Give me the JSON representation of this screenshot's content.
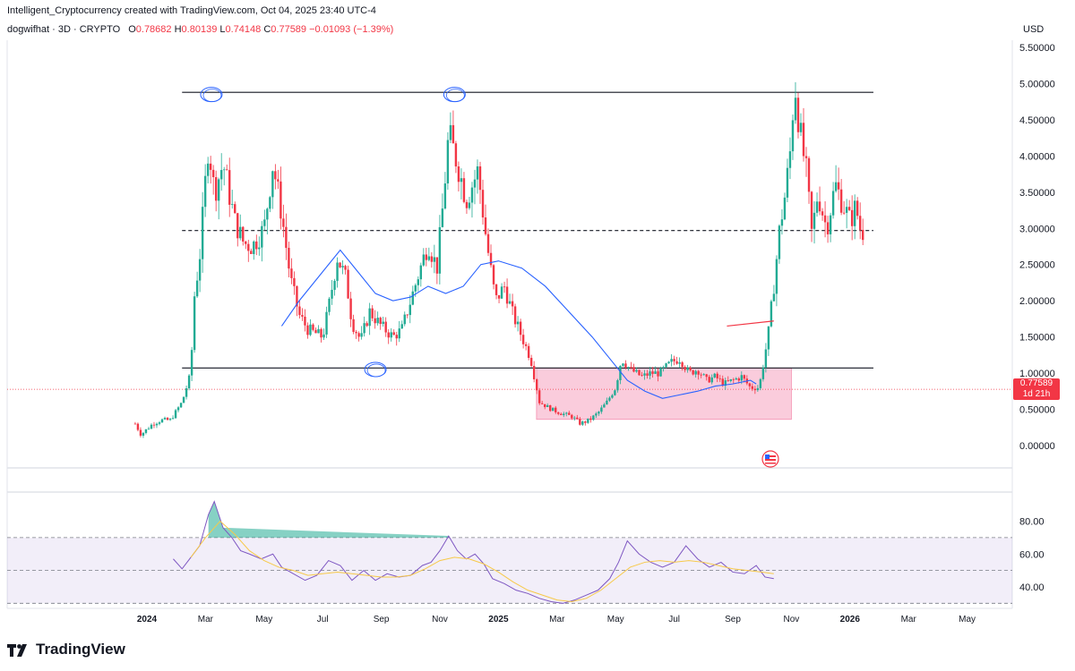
{
  "header": {
    "title": "Intelligent_Cryptocurrency created with TradingView.com, Oct 04, 2025 23:40 UTC-4"
  },
  "symbol": {
    "name": "dogwifhat · 3D · CRYPTO",
    "open_label": "O",
    "open": "0.78682",
    "high_label": "H",
    "high": "0.80139",
    "low_label": "L",
    "low": "0.74148",
    "close_label": "C",
    "close": "0.77589",
    "change": "−0.01093 (−1.39%)"
  },
  "currency": "USD",
  "last_price": {
    "value": "0.77589",
    "countdown": "1d 21h"
  },
  "brand": {
    "name": "TradingView"
  },
  "colors": {
    "up": "#22ab94",
    "down": "#f23645",
    "ma": "#2962ff",
    "rsi": "#7e57c2",
    "rsi_ma": "#f7c948",
    "zone": "#f8bbd0"
  },
  "chart_data": {
    "type": "candlestick",
    "timeframe": "3D",
    "price_axis": {
      "ticks": [
        "0.00000",
        "0.50000",
        "1.00000",
        "1.50000",
        "2.00000",
        "2.50000",
        "3.00000",
        "3.50000",
        "4.00000",
        "4.50000",
        "5.00000",
        "5.50000"
      ],
      "range": [
        -0.15,
        5.6
      ]
    },
    "time_axis": [
      {
        "label": "2024",
        "bold": true,
        "t": 0
      },
      {
        "label": "Mar",
        "bold": false,
        "t": 2
      },
      {
        "label": "May",
        "bold": false,
        "t": 4
      },
      {
        "label": "Jul",
        "bold": false,
        "t": 6
      },
      {
        "label": "Sep",
        "bold": false,
        "t": 8
      },
      {
        "label": "Nov",
        "bold": false,
        "t": 10
      },
      {
        "label": "2025",
        "bold": true,
        "t": 12
      },
      {
        "label": "Mar",
        "bold": false,
        "t": 14
      },
      {
        "label": "May",
        "bold": false,
        "t": 16
      },
      {
        "label": "Jul",
        "bold": false,
        "t": 18
      },
      {
        "label": "Sep",
        "bold": false,
        "t": 20
      },
      {
        "label": "Nov",
        "bold": false,
        "t": 22
      },
      {
        "label": "2026",
        "bold": true,
        "t": 24
      },
      {
        "label": "Mar",
        "bold": false,
        "t": 26
      },
      {
        "label": "May",
        "bold": false,
        "t": 28
      }
    ],
    "price_path": [
      [
        -0.4,
        0.3
      ],
      [
        -0.2,
        0.15
      ],
      [
        0.2,
        0.3
      ],
      [
        0.5,
        0.35
      ],
      [
        0.8,
        0.35
      ],
      [
        1.2,
        0.6
      ],
      [
        1.5,
        1.0
      ],
      [
        1.6,
        2.0
      ],
      [
        1.8,
        2.6
      ],
      [
        2.1,
        4.2
      ],
      [
        2.3,
        3.5
      ],
      [
        2.6,
        3.9
      ],
      [
        3.0,
        3.1
      ],
      [
        3.3,
        2.8
      ],
      [
        3.6,
        2.75
      ],
      [
        4.0,
        3.0
      ],
      [
        4.3,
        3.9
      ],
      [
        4.6,
        3.2
      ],
      [
        4.9,
        2.3
      ],
      [
        5.2,
        1.8
      ],
      [
        5.5,
        1.6
      ],
      [
        6.0,
        1.5
      ],
      [
        6.2,
        1.9
      ],
      [
        6.5,
        2.6
      ],
      [
        6.8,
        2.3
      ],
      [
        7.0,
        1.7
      ],
      [
        7.3,
        1.45
      ],
      [
        7.6,
        1.85
      ],
      [
        8.0,
        1.65
      ],
      [
        8.4,
        1.5
      ],
      [
        8.7,
        1.6
      ],
      [
        9.0,
        2.0
      ],
      [
        9.3,
        2.4
      ],
      [
        9.6,
        2.8
      ],
      [
        9.9,
        2.45
      ],
      [
        10.1,
        3.3
      ],
      [
        10.3,
        4.3
      ],
      [
        10.6,
        3.9
      ],
      [
        10.9,
        3.4
      ],
      [
        11.3,
        3.8
      ],
      [
        11.6,
        2.8
      ],
      [
        11.9,
        2.0
      ],
      [
        12.2,
        2.2
      ],
      [
        12.5,
        1.8
      ],
      [
        12.8,
        1.5
      ],
      [
        13.1,
        1.2
      ],
      [
        13.4,
        0.6
      ],
      [
        13.8,
        0.5
      ],
      [
        14.1,
        0.45
      ],
      [
        14.5,
        0.4
      ],
      [
        14.8,
        0.3
      ],
      [
        15.1,
        0.35
      ],
      [
        15.4,
        0.45
      ],
      [
        15.7,
        0.6
      ],
      [
        16.0,
        0.8
      ],
      [
        16.2,
        1.2
      ],
      [
        16.5,
        1.05
      ],
      [
        16.9,
        0.95
      ],
      [
        17.2,
        1.0
      ],
      [
        17.5,
        1.0
      ],
      [
        17.9,
        1.15
      ],
      [
        18.2,
        1.2
      ],
      [
        18.5,
        1.0
      ],
      [
        18.8,
        1.05
      ],
      [
        19.1,
        0.9
      ],
      [
        19.4,
        0.95
      ],
      [
        19.7,
        0.85
      ],
      [
        20.0,
        0.9
      ],
      [
        20.3,
        0.95
      ],
      [
        20.6,
        0.8
      ],
      [
        20.9,
        0.8
      ],
      [
        21.2,
        1.5
      ],
      [
        21.4,
        2.2
      ],
      [
        21.6,
        3.0
      ],
      [
        21.8,
        3.5
      ],
      [
        22.0,
        4.2
      ],
      [
        22.1,
        5.1
      ],
      [
        22.3,
        4.3
      ],
      [
        22.5,
        3.8
      ],
      [
        22.7,
        2.9
      ],
      [
        22.9,
        3.5
      ],
      [
        23.2,
        3.0
      ],
      [
        23.5,
        3.6
      ],
      [
        23.8,
        3.3
      ],
      [
        24.0,
        3.1
      ],
      [
        24.2,
        3.3
      ],
      [
        24.4,
        2.9
      ],
      [
        24.5,
        3.05
      ]
    ],
    "moving_average": [
      [
        4.6,
        1.65
      ],
      [
        5.2,
        2.0
      ],
      [
        6.0,
        2.4
      ],
      [
        6.6,
        2.7
      ],
      [
        7.2,
        2.4
      ],
      [
        7.8,
        2.1
      ],
      [
        8.4,
        2.0
      ],
      [
        9.0,
        2.05
      ],
      [
        9.6,
        2.2
      ],
      [
        10.2,
        2.1
      ],
      [
        10.8,
        2.2
      ],
      [
        11.4,
        2.5
      ],
      [
        12.0,
        2.55
      ],
      [
        12.8,
        2.45
      ],
      [
        13.6,
        2.2
      ],
      [
        14.4,
        1.85
      ],
      [
        15.2,
        1.5
      ],
      [
        15.8,
        1.2
      ],
      [
        16.4,
        0.9
      ],
      [
        17.0,
        0.75
      ],
      [
        17.6,
        0.65
      ],
      [
        18.2,
        0.7
      ],
      [
        18.8,
        0.75
      ],
      [
        19.4,
        0.82
      ],
      [
        20.0,
        0.85
      ],
      [
        20.6,
        0.9
      ],
      [
        20.8,
        0.85
      ]
    ],
    "levels": [
      {
        "price": 4.88,
        "style": "solid",
        "t_start": 1.2,
        "t_end": 24.8
      },
      {
        "price": 2.97,
        "style": "dashed",
        "t_start": 1.2,
        "t_end": 24.8
      },
      {
        "price": 1.07,
        "style": "solid",
        "t_start": 1.2,
        "t_end": 24.8
      }
    ],
    "zone": {
      "t_start": 13.3,
      "t_end": 22.0,
      "price_low": 0.36,
      "price_high": 1.07
    },
    "annotations": [
      {
        "type": "ellipse",
        "t": 2.2,
        "price": 4.85
      },
      {
        "type": "ellipse",
        "t": 10.5,
        "price": 4.85
      },
      {
        "type": "ellipse",
        "t": 7.8,
        "price": 1.05
      },
      {
        "type": "line",
        "t1": 19.8,
        "p1": 1.65,
        "t2": 21.4,
        "p2": 1.72
      }
    ],
    "last_price": 0.77589,
    "rsi": {
      "ticks": [
        "40.00",
        "60.00",
        "80.00"
      ],
      "range": [
        28,
        95
      ],
      "bands": [
        30,
        50,
        70
      ],
      "values": [
        [
          0.9,
          57
        ],
        [
          1.2,
          51
        ],
        [
          1.5,
          58
        ],
        [
          1.8,
          65
        ],
        [
          2.1,
          84
        ],
        [
          2.3,
          92
        ],
        [
          2.6,
          76
        ],
        [
          2.9,
          70
        ],
        [
          3.2,
          62
        ],
        [
          3.5,
          60
        ],
        [
          3.9,
          57
        ],
        [
          4.3,
          60
        ],
        [
          4.6,
          52
        ],
        [
          5.0,
          48
        ],
        [
          5.4,
          44
        ],
        [
          5.8,
          47
        ],
        [
          6.2,
          56
        ],
        [
          6.6,
          53
        ],
        [
          7.0,
          44
        ],
        [
          7.4,
          50
        ],
        [
          7.8,
          44
        ],
        [
          8.2,
          48
        ],
        [
          8.6,
          46
        ],
        [
          9.0,
          47
        ],
        [
          9.4,
          53
        ],
        [
          9.7,
          55
        ],
        [
          10.0,
          62
        ],
        [
          10.3,
          71
        ],
        [
          10.6,
          62
        ],
        [
          10.9,
          57
        ],
        [
          11.2,
          60
        ],
        [
          11.5,
          54
        ],
        [
          11.8,
          45
        ],
        [
          12.2,
          42
        ],
        [
          12.6,
          38
        ],
        [
          13.0,
          36
        ],
        [
          13.4,
          33
        ],
        [
          13.8,
          31
        ],
        [
          14.2,
          30
        ],
        [
          14.6,
          32
        ],
        [
          15.0,
          35
        ],
        [
          15.4,
          38
        ],
        [
          15.8,
          45
        ],
        [
          16.1,
          55
        ],
        [
          16.4,
          68
        ],
        [
          16.8,
          60
        ],
        [
          17.2,
          55
        ],
        [
          17.6,
          52
        ],
        [
          18.0,
          55
        ],
        [
          18.4,
          65
        ],
        [
          18.8,
          57
        ],
        [
          19.2,
          52
        ],
        [
          19.6,
          55
        ],
        [
          20.0,
          49
        ],
        [
          20.4,
          48
        ],
        [
          20.8,
          53
        ],
        [
          21.1,
          46
        ],
        [
          21.4,
          45
        ]
      ],
      "ma": [
        [
          1.5,
          58
        ],
        [
          2.0,
          70
        ],
        [
          2.5,
          80
        ],
        [
          3.0,
          72
        ],
        [
          3.5,
          62
        ],
        [
          4.0,
          56
        ],
        [
          4.5,
          52
        ],
        [
          5.0,
          50
        ],
        [
          5.5,
          47
        ],
        [
          6.0,
          48
        ],
        [
          6.5,
          49
        ],
        [
          7.0,
          48
        ],
        [
          7.5,
          47
        ],
        [
          8.0,
          46
        ],
        [
          8.5,
          46
        ],
        [
          9.0,
          47
        ],
        [
          9.5,
          51
        ],
        [
          10.0,
          56
        ],
        [
          10.5,
          58
        ],
        [
          11.0,
          57
        ],
        [
          11.5,
          54
        ],
        [
          12.0,
          49
        ],
        [
          12.5,
          43
        ],
        [
          13.0,
          38
        ],
        [
          13.5,
          35
        ],
        [
          14.0,
          32
        ],
        [
          14.5,
          31
        ],
        [
          15.0,
          33
        ],
        [
          15.5,
          38
        ],
        [
          16.0,
          45
        ],
        [
          16.5,
          52
        ],
        [
          17.0,
          55
        ],
        [
          17.5,
          56
        ],
        [
          18.0,
          55
        ],
        [
          18.5,
          56
        ],
        [
          19.0,
          55
        ],
        [
          19.5,
          53
        ],
        [
          20.0,
          51
        ],
        [
          20.5,
          50
        ],
        [
          21.0,
          49
        ],
        [
          21.4,
          48
        ]
      ]
    }
  }
}
